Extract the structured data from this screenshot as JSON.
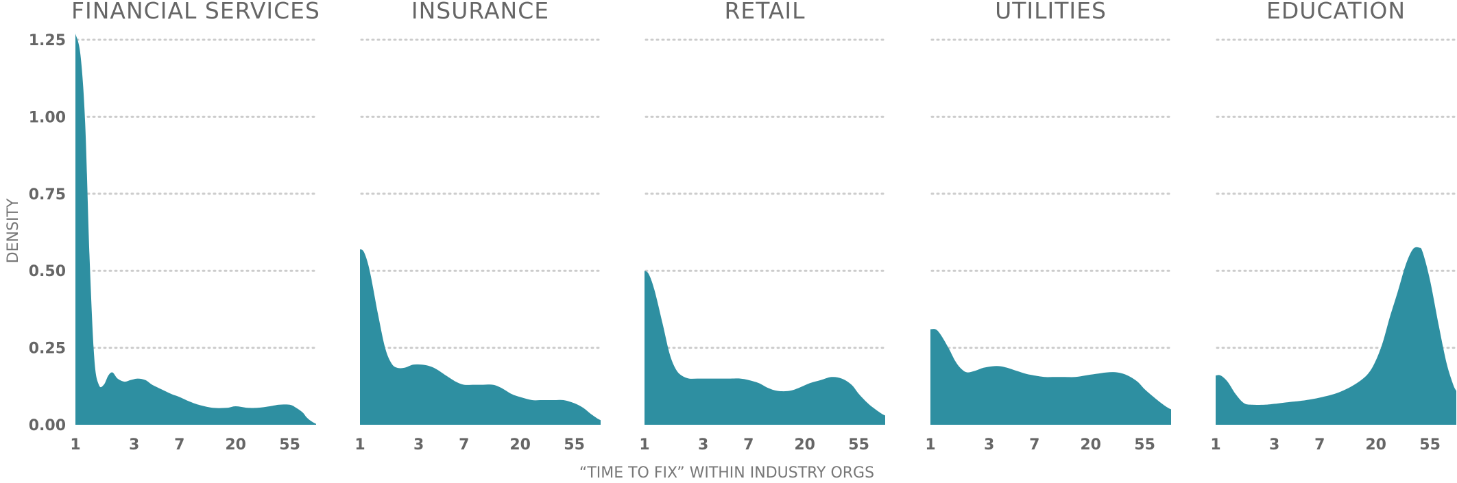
{
  "chart_data": {
    "type": "area",
    "xlabel": "“TIME TO FIX” WITHIN INDUSTRY ORGS",
    "ylabel": "DENSITY",
    "x_scale": "log",
    "xlim": [
      1,
      90
    ],
    "ylim": [
      0,
      1.25
    ],
    "y_ticks": [
      0,
      0.25,
      0.5,
      0.75,
      1.0,
      1.25
    ],
    "y_tick_labels": [
      "0.00",
      "0.25",
      "0.50",
      "0.75",
      "1.00",
      "1.25"
    ],
    "x_ticks": [
      1,
      3,
      7,
      20,
      55
    ],
    "x_tick_labels": [
      "1",
      "3",
      "7",
      "20",
      "55"
    ],
    "grid": "horizontal-dotted",
    "fill_color": "#2e8fa1",
    "panels": [
      {
        "title": "FINANCIAL SERVICES",
        "x": [
          1,
          1.1,
          1.2,
          1.3,
          1.42,
          1.55,
          1.7,
          1.85,
          2.0,
          2.2,
          2.5,
          2.8,
          3.2,
          3.7,
          4.2,
          5.0,
          6.0,
          7.0,
          8.5,
          10,
          13,
          17,
          20,
          25,
          30,
          38,
          45,
          55,
          62,
          70,
          75,
          80,
          85,
          90
        ],
        "y": [
          1.27,
          1.2,
          0.98,
          0.55,
          0.22,
          0.13,
          0.13,
          0.16,
          0.17,
          0.15,
          0.14,
          0.145,
          0.15,
          0.145,
          0.13,
          0.115,
          0.1,
          0.09,
          0.075,
          0.065,
          0.055,
          0.055,
          0.06,
          0.055,
          0.055,
          0.06,
          0.065,
          0.065,
          0.055,
          0.04,
          0.025,
          0.015,
          0.008,
          0.003
        ]
      },
      {
        "title": "INSURANCE",
        "x": [
          1,
          1.08,
          1.2,
          1.4,
          1.6,
          1.8,
          2.0,
          2.3,
          2.7,
          3.2,
          3.7,
          4.2,
          5.0,
          6.0,
          7.0,
          8.5,
          10,
          12,
          14,
          17,
          20,
          25,
          30,
          38,
          45,
          55,
          65,
          75,
          85,
          90
        ],
        "y": [
          0.57,
          0.56,
          0.5,
          0.36,
          0.25,
          0.2,
          0.185,
          0.185,
          0.195,
          0.195,
          0.19,
          0.18,
          0.16,
          0.14,
          0.13,
          0.13,
          0.13,
          0.13,
          0.12,
          0.1,
          0.09,
          0.08,
          0.08,
          0.08,
          0.08,
          0.07,
          0.055,
          0.035,
          0.02,
          0.015
        ]
      },
      {
        "title": "RETAIL",
        "x": [
          1,
          1.08,
          1.2,
          1.4,
          1.6,
          1.8,
          2.0,
          2.3,
          2.7,
          3.2,
          4.0,
          5.0,
          6.0,
          7.0,
          8.5,
          10,
          12,
          15,
          18,
          22,
          27,
          33,
          40,
          48,
          55,
          65,
          75,
          85,
          90
        ],
        "y": [
          0.5,
          0.49,
          0.44,
          0.33,
          0.23,
          0.18,
          0.16,
          0.15,
          0.15,
          0.15,
          0.15,
          0.15,
          0.15,
          0.145,
          0.135,
          0.12,
          0.11,
          0.11,
          0.12,
          0.135,
          0.145,
          0.155,
          0.15,
          0.13,
          0.1,
          0.07,
          0.05,
          0.035,
          0.03
        ]
      },
      {
        "title": "UTILITIES",
        "x": [
          1,
          1.1,
          1.2,
          1.4,
          1.6,
          1.8,
          2.0,
          2.3,
          2.7,
          3.2,
          3.7,
          4.2,
          5.0,
          6.0,
          7.0,
          8.5,
          10,
          12,
          15,
          18,
          22,
          27,
          33,
          40,
          48,
          55,
          65,
          75,
          85,
          90
        ],
        "y": [
          0.31,
          0.31,
          0.295,
          0.25,
          0.205,
          0.18,
          0.17,
          0.175,
          0.185,
          0.19,
          0.19,
          0.185,
          0.175,
          0.165,
          0.16,
          0.155,
          0.155,
          0.155,
          0.155,
          0.16,
          0.165,
          0.17,
          0.17,
          0.16,
          0.14,
          0.115,
          0.09,
          0.07,
          0.055,
          0.05
        ]
      },
      {
        "title": "EDUCATION",
        "x": [
          1,
          1.1,
          1.25,
          1.45,
          1.7,
          2.0,
          2.5,
          3.0,
          4.0,
          5.0,
          7.0,
          10,
          14,
          18,
          22,
          26,
          30,
          35,
          40,
          45,
          48,
          55,
          65,
          75,
          85,
          90
        ],
        "y": [
          0.16,
          0.16,
          0.14,
          0.1,
          0.07,
          0.065,
          0.065,
          0.068,
          0.074,
          0.078,
          0.088,
          0.105,
          0.135,
          0.175,
          0.25,
          0.35,
          0.43,
          0.52,
          0.57,
          0.575,
          0.56,
          0.47,
          0.32,
          0.2,
          0.13,
          0.11
        ]
      }
    ]
  }
}
